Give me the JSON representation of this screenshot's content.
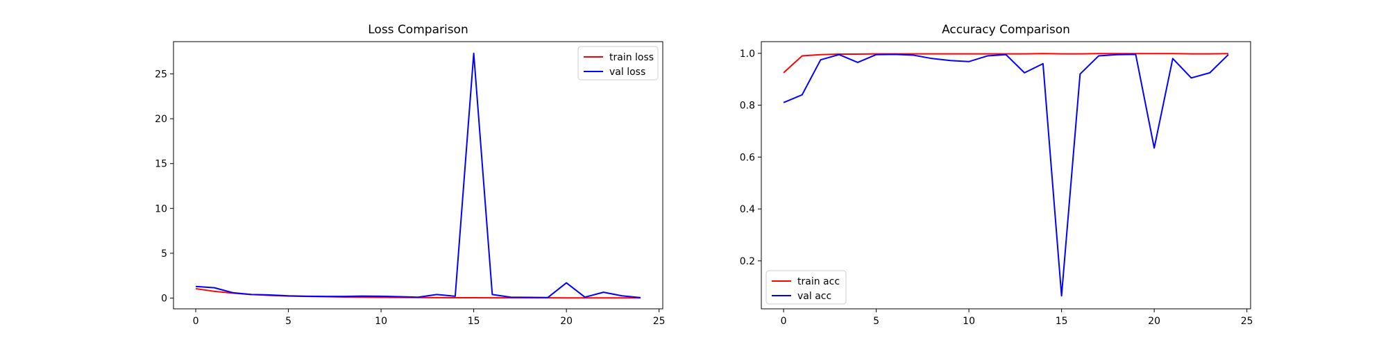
{
  "chart_data": [
    {
      "type": "line",
      "title": "Loss Comparison",
      "xlabel": "",
      "ylabel": "",
      "xlim": [
        -1.2,
        25.2
      ],
      "ylim": [
        -1.2,
        28.6
      ],
      "xticks": [
        0,
        5,
        10,
        15,
        20,
        25
      ],
      "yticks": [
        0,
        5,
        10,
        15,
        20,
        25
      ],
      "grid": false,
      "legend_position": "top-right",
      "x": [
        0,
        1,
        2,
        3,
        4,
        5,
        6,
        7,
        8,
        9,
        10,
        11,
        12,
        13,
        14,
        15,
        16,
        17,
        18,
        19,
        20,
        21,
        22,
        23,
        24
      ],
      "series": [
        {
          "name": "train loss",
          "color": "#ff0000",
          "values": [
            1.05,
            0.75,
            0.55,
            0.4,
            0.3,
            0.22,
            0.18,
            0.15,
            0.12,
            0.1,
            0.08,
            0.07,
            0.06,
            0.05,
            0.04,
            0.04,
            0.03,
            0.03,
            0.03,
            0.03,
            0.02,
            0.02,
            0.02,
            0.02,
            0.02
          ]
        },
        {
          "name": "val loss",
          "color": "#0000ff",
          "values": [
            1.3,
            1.15,
            0.6,
            0.4,
            0.35,
            0.25,
            0.2,
            0.18,
            0.18,
            0.22,
            0.2,
            0.15,
            0.1,
            0.4,
            0.2,
            27.3,
            0.4,
            0.1,
            0.08,
            0.06,
            1.7,
            0.1,
            0.65,
            0.25,
            0.05
          ]
        }
      ]
    },
    {
      "type": "line",
      "title": "Accuracy Comparison",
      "xlabel": "",
      "ylabel": "",
      "xlim": [
        -1.2,
        25.2
      ],
      "ylim": [
        0.015,
        1.045
      ],
      "xticks": [
        0,
        5,
        10,
        15,
        20,
        25
      ],
      "yticks": [
        0.2,
        0.4,
        0.6,
        0.8,
        1.0
      ],
      "ytick_labels": [
        "0.2",
        "0.4",
        "0.6",
        "0.8",
        "1.0"
      ],
      "grid": false,
      "legend_position": "bottom-left",
      "x": [
        0,
        1,
        2,
        3,
        4,
        5,
        6,
        7,
        8,
        9,
        10,
        11,
        12,
        13,
        14,
        15,
        16,
        17,
        18,
        19,
        20,
        21,
        22,
        23,
        24
      ],
      "series": [
        {
          "name": "train acc",
          "color": "#ff0000",
          "values": [
            0.925,
            0.99,
            0.995,
            0.997,
            0.997,
            0.998,
            0.998,
            0.998,
            0.998,
            0.998,
            0.998,
            0.998,
            0.998,
            0.998,
            0.999,
            0.998,
            0.998,
            0.999,
            0.999,
            0.999,
            0.999,
            0.999,
            0.998,
            0.998,
            0.999
          ]
        },
        {
          "name": "val acc",
          "color": "#0000ff",
          "values": [
            0.81,
            0.84,
            0.975,
            0.995,
            0.965,
            0.995,
            0.996,
            0.993,
            0.98,
            0.972,
            0.968,
            0.99,
            0.995,
            0.925,
            0.96,
            0.065,
            0.92,
            0.99,
            0.995,
            0.996,
            0.635,
            0.98,
            0.905,
            0.925,
            0.995
          ]
        }
      ]
    }
  ]
}
